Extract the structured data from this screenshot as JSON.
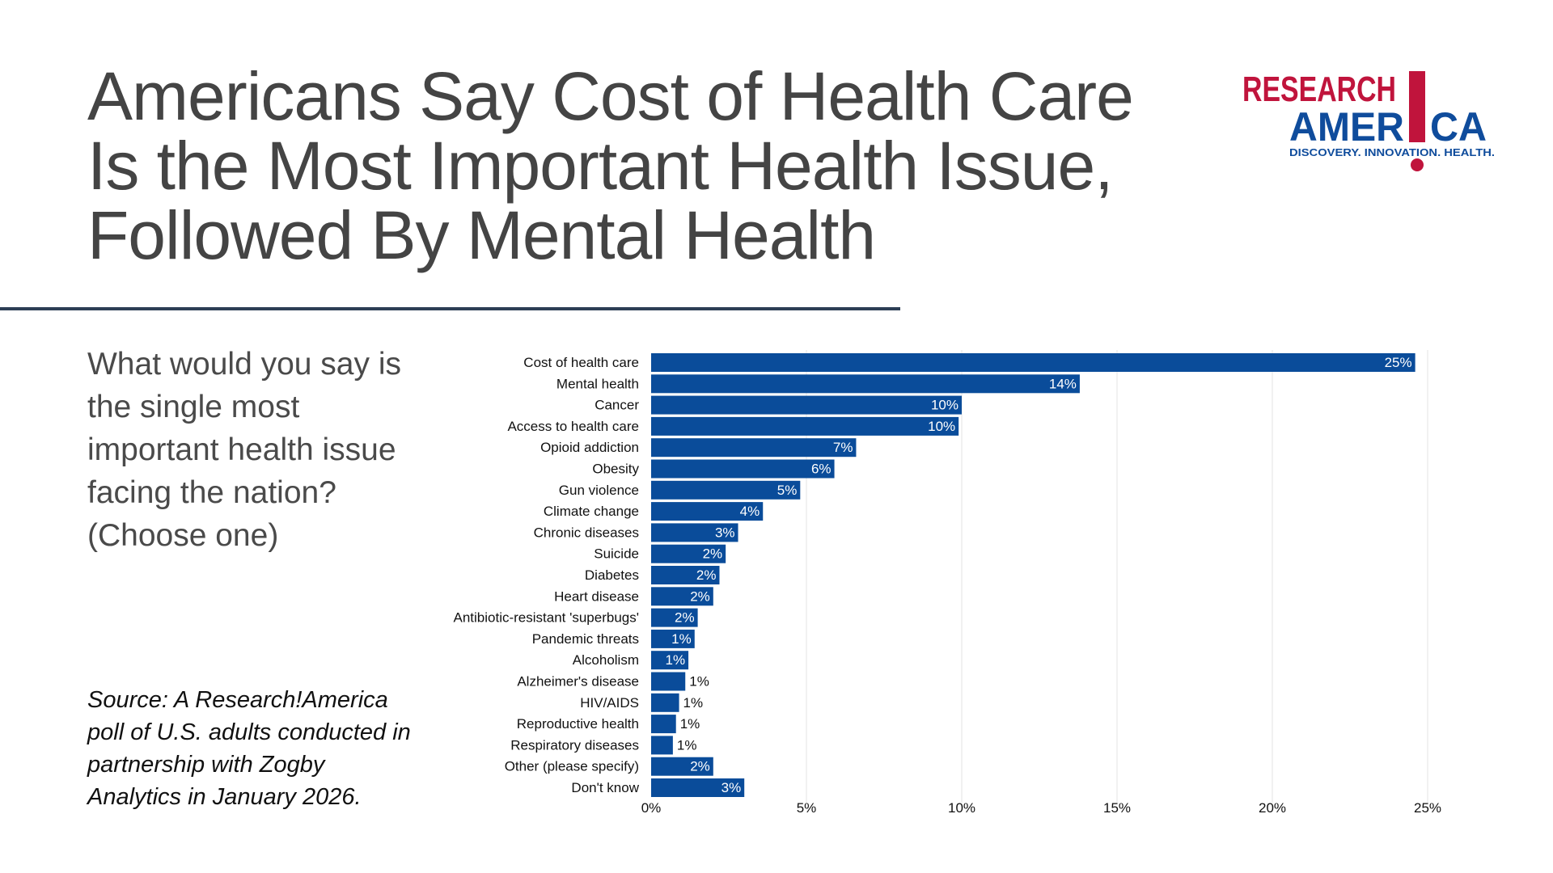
{
  "header": {
    "title_lines": [
      "Americans Say Cost of Health Care",
      "Is the Most Important Health Issue,",
      "Followed By Mental Health"
    ]
  },
  "logo": {
    "line1": "RESEARCH",
    "line2_left": "AMER",
    "line2_right": "CA",
    "tagline": "DISCOVERY. INNOVATION. HEALTH.",
    "colors": {
      "red": "#c0143c",
      "blue": "#0f4c9c"
    }
  },
  "question": "What would you say is the single most important health issue facing the nation? (Choose one)",
  "source": "Source: A Research!America poll of U.S. adults conducted in partnership with Zogby Analytics in January 2026.",
  "colors": {
    "bar": "#0a4c9a",
    "title": "#444444",
    "divider": "#2c3e55",
    "grid": "#e3e3e3"
  },
  "chart_data": {
    "type": "bar",
    "orientation": "horizontal",
    "grid": true,
    "xlim": [
      0,
      25
    ],
    "ticks": [
      0,
      5,
      10,
      15,
      20,
      25
    ],
    "tick_labels": [
      "0%",
      "5%",
      "10%",
      "15%",
      "20%",
      "25%"
    ],
    "categories": [
      "Cost of health care",
      "Mental health",
      "Cancer",
      "Access to health care",
      "Opioid addiction",
      "Obesity",
      "Gun violence",
      "Climate change",
      "Chronic diseases",
      "Suicide",
      "Diabetes",
      "Heart disease",
      "Antibiotic-resistant 'superbugs'",
      "Pandemic threats",
      "Alcoholism",
      "Alzheimer's disease",
      "HIV/AIDS",
      "Reproductive health",
      "Respiratory diseases",
      "Other (please specify)",
      "Don't know"
    ],
    "values": [
      24.6,
      13.8,
      10.0,
      9.9,
      6.6,
      5.9,
      4.8,
      3.6,
      2.8,
      2.4,
      2.2,
      2.0,
      1.5,
      1.4,
      1.2,
      1.1,
      0.9,
      0.8,
      0.7,
      2.0,
      3.0
    ],
    "value_labels": [
      "25%",
      "14%",
      "10%",
      "10%",
      "7%",
      "6%",
      "5%",
      "4%",
      "3%",
      "2%",
      "2%",
      "2%",
      "2%",
      "1%",
      "1%",
      "1%",
      "1%",
      "1%",
      "1%",
      "2%",
      "3%"
    ]
  }
}
